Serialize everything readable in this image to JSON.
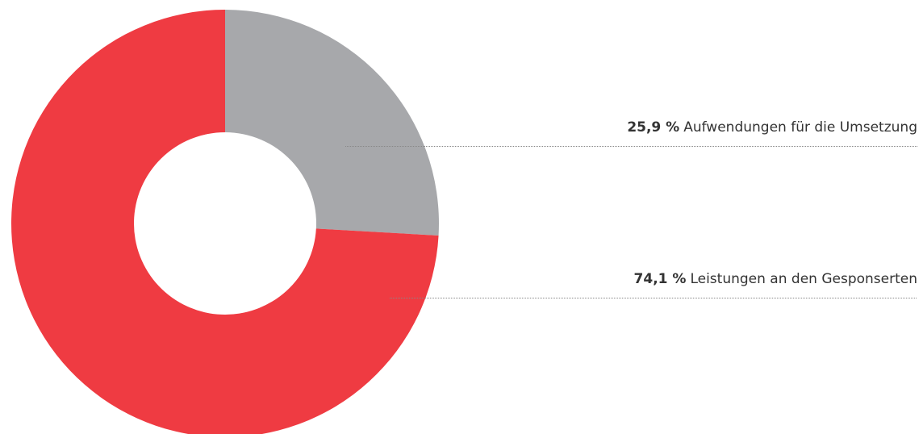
{
  "chart_data": {
    "type": "pie",
    "categories": [
      "Aufwendungen für die Umsetzung",
      "Leistungen an den Gesponserten"
    ],
    "values": [
      25.9,
      74.1
    ],
    "value_labels": [
      "25,9 %",
      "74,1 %"
    ],
    "colors": [
      "#a7a8ab",
      "#ef3b42"
    ]
  }
}
